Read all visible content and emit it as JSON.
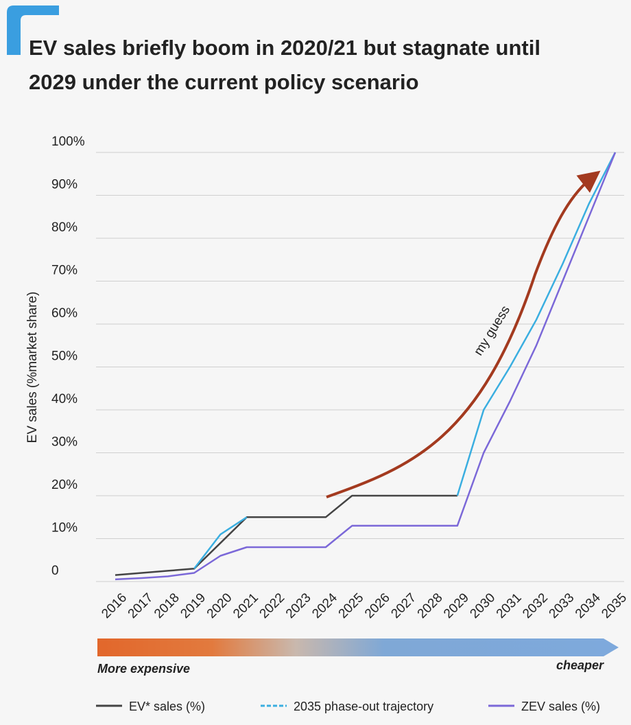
{
  "chart_data": {
    "type": "line",
    "title": [
      "EV sales briefly boom in 2020/21 but stagnate until",
      "2029 under the current policy scenario"
    ],
    "y_label": "EV sales (%market share)",
    "categories": [
      "2016",
      "2017",
      "2018",
      "2019",
      "2020",
      "2021",
      "2022",
      "2023",
      "2024",
      "2025",
      "2026",
      "2027",
      "2028",
      "2029",
      "2030",
      "2031",
      "2032",
      "2033",
      "2034",
      "2035"
    ],
    "series": [
      {
        "name": "EV* sales (%)",
        "color": "#444444",
        "values": [
          1.5,
          2,
          2.5,
          3,
          9,
          15,
          15,
          15,
          15,
          20,
          20,
          20,
          20,
          20,
          null,
          null,
          null,
          null,
          null,
          null
        ]
      },
      {
        "name": "2035 phase-out trajectory",
        "color": "#3aaee0",
        "values": [
          null,
          null,
          null,
          3,
          11,
          15,
          null,
          null,
          null,
          null,
          null,
          null,
          null,
          20,
          40,
          50,
          61,
          74,
          88,
          100
        ]
      },
      {
        "name": "ZEV sales (%)",
        "color": "#7b68d8",
        "values": [
          0.5,
          0.8,
          1.2,
          2,
          6,
          8,
          8,
          8,
          8,
          13,
          13,
          13,
          13,
          13,
          30,
          42,
          55,
          70,
          85,
          100
        ]
      }
    ],
    "ylim": [
      0,
      100
    ],
    "yticks": [
      0,
      {
        "value": 10,
        "label": "10%"
      },
      {
        "value": 20,
        "label": "20%"
      },
      {
        "value": 30,
        "label": "30%"
      },
      {
        "value": 40,
        "label": "40%"
      },
      {
        "value": 50,
        "label": "50%"
      },
      {
        "value": 60,
        "label": "60%"
      },
      {
        "value": 70,
        "label": "70%"
      },
      {
        "value": 80,
        "label": "80%"
      },
      {
        "value": 90,
        "label": "90%"
      },
      {
        "value": 100,
        "label": "100%"
      }
    ],
    "grid": true,
    "annotation": "my guess",
    "cost_scale": {
      "left": "More expensive",
      "right": "cheaper"
    }
  }
}
